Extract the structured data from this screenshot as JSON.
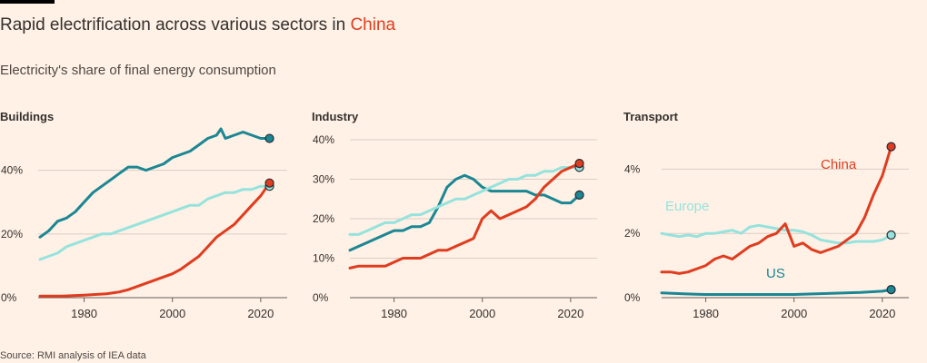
{
  "header": {
    "title_main": "Rapid electrification across various sectors in ",
    "title_highlight": "China",
    "subtitle": "Electricity's share of final energy consumption",
    "source": "Source: RMI analysis of IEA data"
  },
  "colors": {
    "background": "#fff1e5",
    "grid": "#d9cec6",
    "axis": "#66605c",
    "china": "#e03c1f",
    "europe": "#96e3dd",
    "us": "#1b8794",
    "text": "#33302e"
  },
  "chart_data": [
    {
      "type": "line",
      "title": "Buildings",
      "xlim": [
        1970,
        2026
      ],
      "ylim": [
        0,
        55
      ],
      "xticks": [
        1980,
        2000,
        2020
      ],
      "xtick_labels": [
        "1980",
        "2000",
        "2020"
      ],
      "yticks": [
        0,
        20,
        40
      ],
      "ytick_labels": [
        "0%",
        "20%",
        "40%"
      ],
      "series": [
        {
          "key": "us",
          "x": [
            1970,
            1972,
            1974,
            1976,
            1978,
            1980,
            1982,
            1984,
            1986,
            1988,
            1990,
            1992,
            1994,
            1996,
            1998,
            2000,
            2002,
            2004,
            2006,
            2008,
            2010,
            2011,
            2012,
            2014,
            2016,
            2018,
            2020,
            2022
          ],
          "y": [
            19,
            21,
            24,
            25,
            27,
            30,
            33,
            35,
            37,
            39,
            41,
            41,
            40,
            41,
            42,
            44,
            45,
            46,
            48,
            50,
            51,
            53,
            50,
            51,
            52,
            51,
            50,
            50
          ]
        },
        {
          "key": "europe",
          "x": [
            1970,
            1972,
            1974,
            1976,
            1978,
            1980,
            1982,
            1984,
            1986,
            1988,
            1990,
            1992,
            1994,
            1996,
            1998,
            2000,
            2002,
            2004,
            2006,
            2008,
            2010,
            2012,
            2014,
            2016,
            2018,
            2020,
            2022
          ],
          "y": [
            12,
            13,
            14,
            16,
            17,
            18,
            19,
            20,
            20,
            21,
            22,
            23,
            24,
            25,
            26,
            27,
            28,
            29,
            29,
            31,
            32,
            33,
            33,
            34,
            34,
            35,
            35
          ]
        },
        {
          "key": "china",
          "x": [
            1970,
            1975,
            1980,
            1985,
            1988,
            1990,
            1992,
            1994,
            1996,
            1998,
            2000,
            2002,
            2004,
            2006,
            2008,
            2010,
            2012,
            2014,
            2016,
            2018,
            2020,
            2022
          ],
          "y": [
            0.5,
            0.5,
            0.8,
            1.2,
            1.8,
            2.5,
            3.5,
            4.5,
            5.5,
            6.5,
            7.5,
            9,
            11,
            13,
            16,
            19,
            21,
            23,
            26,
            29,
            32,
            36
          ]
        }
      ],
      "annotations": []
    },
    {
      "type": "line",
      "title": "Industry",
      "xlim": [
        1970,
        2026
      ],
      "ylim": [
        0,
        40
      ],
      "xticks": [
        1980,
        2000,
        2020
      ],
      "xtick_labels": [
        "1980",
        "2000",
        "2020"
      ],
      "yticks": [
        0,
        10,
        20,
        30,
        40
      ],
      "ytick_labels": [
        "0%",
        "10%",
        "20%",
        "30%",
        "40%"
      ],
      "series": [
        {
          "key": "us",
          "x": [
            1970,
            1972,
            1974,
            1976,
            1978,
            1980,
            1982,
            1984,
            1986,
            1988,
            1990,
            1992,
            1994,
            1996,
            1998,
            2000,
            2002,
            2004,
            2006,
            2008,
            2010,
            2012,
            2014,
            2016,
            2018,
            2020,
            2022
          ],
          "y": [
            12,
            13,
            14,
            15,
            16,
            17,
            17,
            18,
            18,
            19,
            23,
            28,
            30,
            31,
            30,
            28,
            27,
            27,
            27,
            27,
            27,
            26,
            26,
            25,
            24,
            24,
            26
          ]
        },
        {
          "key": "europe",
          "x": [
            1970,
            1972,
            1974,
            1976,
            1978,
            1980,
            1982,
            1984,
            1986,
            1988,
            1990,
            1992,
            1994,
            1996,
            1998,
            2000,
            2002,
            2004,
            2006,
            2008,
            2010,
            2012,
            2014,
            2016,
            2018,
            2020,
            2022
          ],
          "y": [
            16,
            16,
            17,
            18,
            19,
            19,
            20,
            21,
            21,
            22,
            23,
            24,
            25,
            25,
            26,
            27,
            28,
            29,
            30,
            30,
            31,
            31,
            32,
            32,
            33,
            33,
            33
          ]
        },
        {
          "key": "china",
          "x": [
            1970,
            1972,
            1974,
            1976,
            1978,
            1980,
            1982,
            1984,
            1986,
            1988,
            1990,
            1992,
            1994,
            1996,
            1998,
            2000,
            2002,
            2004,
            2006,
            2008,
            2010,
            2012,
            2014,
            2016,
            2018,
            2020,
            2022
          ],
          "y": [
            7.5,
            8,
            8,
            8,
            8,
            9,
            10,
            10,
            10,
            11,
            12,
            12,
            13,
            14,
            15,
            20,
            22,
            20,
            21,
            22,
            23,
            25,
            28,
            30,
            32,
            33,
            34
          ]
        }
      ],
      "annotations": []
    },
    {
      "type": "line",
      "title": "Transport",
      "xlim": [
        1970,
        2026
      ],
      "ylim": [
        0,
        5
      ],
      "xticks": [
        1980,
        2000,
        2020
      ],
      "xtick_labels": [
        "1980",
        "2000",
        "2020"
      ],
      "yticks": [
        0,
        2,
        4
      ],
      "ytick_labels": [
        "0%",
        "2%",
        "4%"
      ],
      "series": [
        {
          "key": "us",
          "x": [
            1970,
            1975,
            1980,
            1985,
            1990,
            1995,
            2000,
            2005,
            2010,
            2015,
            2020,
            2022
          ],
          "y": [
            0.15,
            0.12,
            0.1,
            0.1,
            0.1,
            0.1,
            0.1,
            0.12,
            0.14,
            0.16,
            0.2,
            0.25
          ]
        },
        {
          "key": "europe",
          "x": [
            1970,
            1972,
            1974,
            1976,
            1978,
            1980,
            1982,
            1984,
            1986,
            1988,
            1990,
            1992,
            1994,
            1996,
            1998,
            2000,
            2002,
            2004,
            2006,
            2008,
            2010,
            2012,
            2014,
            2016,
            2018,
            2020,
            2022
          ],
          "y": [
            2.0,
            1.95,
            1.9,
            1.95,
            1.9,
            2.0,
            2.0,
            2.05,
            2.1,
            2.0,
            2.2,
            2.25,
            2.2,
            2.15,
            2.1,
            2.1,
            2.05,
            1.95,
            1.8,
            1.75,
            1.7,
            1.7,
            1.75,
            1.75,
            1.75,
            1.8,
            1.95
          ]
        },
        {
          "key": "china",
          "x": [
            1970,
            1972,
            1974,
            1976,
            1978,
            1980,
            1982,
            1984,
            1986,
            1988,
            1990,
            1992,
            1994,
            1996,
            1998,
            2000,
            2002,
            2004,
            2006,
            2008,
            2010,
            2012,
            2014,
            2016,
            2018,
            2020,
            2022
          ],
          "y": [
            0.8,
            0.8,
            0.75,
            0.8,
            0.9,
            1.0,
            1.2,
            1.3,
            1.2,
            1.4,
            1.6,
            1.7,
            1.9,
            2.0,
            2.3,
            1.6,
            1.7,
            1.5,
            1.4,
            1.5,
            1.6,
            1.8,
            2.0,
            2.5,
            3.2,
            3.8,
            4.7
          ]
        }
      ],
      "annotations": [
        {
          "label": "China",
          "key": "china"
        },
        {
          "label": "Europe",
          "key": "europe"
        },
        {
          "label": "US",
          "key": "us"
        }
      ]
    }
  ]
}
